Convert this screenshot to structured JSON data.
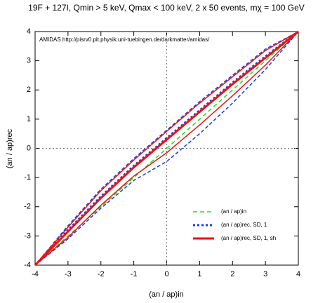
{
  "chart_data": {
    "type": "line",
    "title": "19F + 127I, Qmin > 5 keV, Qmax < 100 keV, 2 x 50 events, mχ = 100 GeV",
    "annotation": "AMIDAS   http://pisrv0.pit.physik.uni-tuebingen.de/darkmatter/amidas/",
    "x_label": "(an / ap)in",
    "y_label": "(an / ap)rec",
    "x": [
      -4,
      -3,
      -2,
      -1,
      0,
      1,
      2,
      3,
      4
    ],
    "series": [
      {
        "name": "(an / ap)in",
        "color": "#22dd22",
        "style": "dashed",
        "values": [
          -4,
          -3,
          -2,
          -1,
          0,
          1,
          2,
          3,
          4
        ]
      },
      {
        "name": "(an / ap)rec, SD, 1",
        "color": "#1a3adf",
        "style": "dotted",
        "values": [
          -4,
          -2.8,
          -1.65,
          -0.6,
          0.35,
          1.3,
          2.25,
          3.15,
          4
        ],
        "upper": [
          -4,
          -2.65,
          -1.4,
          -0.35,
          0.62,
          1.6,
          2.5,
          3.4,
          4
        ],
        "lower": [
          -4,
          -3.1,
          -2.05,
          -1.1,
          -0.45,
          0.5,
          1.55,
          2.7,
          4
        ]
      },
      {
        "name": "(an / ap)rec, SD, 1, sh",
        "color": "#ee1111",
        "style": "solid",
        "values": [
          -4,
          -2.85,
          -1.7,
          -0.65,
          0.3,
          1.25,
          2.2,
          3.1,
          4
        ],
        "upper": [
          -4,
          -2.7,
          -1.45,
          -0.4,
          0.58,
          1.55,
          2.45,
          3.35,
          4
        ],
        "lower": [
          -4,
          -3.05,
          -1.95,
          -0.95,
          -0.15,
          0.8,
          1.8,
          2.85,
          4
        ]
      }
    ],
    "xlim": [
      -4,
      4
    ],
    "ylim": [
      -4,
      4
    ],
    "xticks": [
      -4,
      -3,
      -2,
      -1,
      0,
      1,
      2,
      3,
      4
    ],
    "yticks": [
      -4,
      -3,
      -2,
      -1,
      0,
      1,
      2,
      3,
      4
    ],
    "zero_lines": true,
    "legend": "lower-right"
  }
}
